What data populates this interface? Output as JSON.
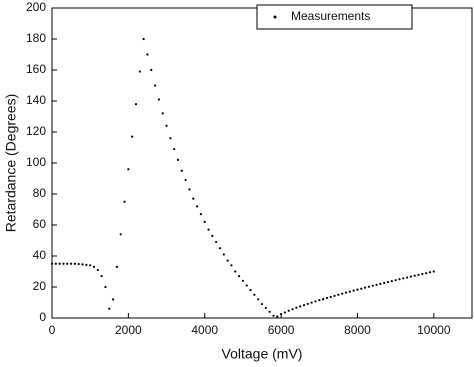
{
  "chart_data": {
    "type": "scatter",
    "x_label": "Voltage (mV)",
    "y_label": "Retardance (Degrees)",
    "xlim": [
      0,
      11000
    ],
    "xticks": [
      0,
      2000,
      4000,
      6000,
      8000,
      10000
    ],
    "ylim": [
      0,
      200
    ],
    "yticks": [
      0,
      20,
      40,
      60,
      80,
      100,
      120,
      140,
      160,
      180,
      200
    ],
    "legend": "top-right",
    "series": [
      {
        "name": "Measurements",
        "color": "#000000",
        "x": [
          0,
          100,
          200,
          300,
          400,
          500,
          600,
          700,
          800,
          900,
          1000,
          1100,
          1200,
          1300,
          1400,
          1500,
          1600,
          1700,
          1800,
          1900,
          2000,
          2100,
          2200,
          2300,
          2400,
          2500,
          2600,
          2700,
          2800,
          2900,
          3000,
          3100,
          3200,
          3300,
          3400,
          3500,
          3600,
          3700,
          3800,
          3900,
          4000,
          4100,
          4200,
          4300,
          4400,
          4500,
          4600,
          4700,
          4800,
          4900,
          5000,
          5100,
          5200,
          5300,
          5400,
          5500,
          5600,
          5700,
          5800,
          5900,
          6000,
          6100,
          6200,
          6300,
          6400,
          6500,
          6600,
          6700,
          6800,
          6900,
          7000,
          7100,
          7200,
          7300,
          7400,
          7500,
          7600,
          7700,
          7800,
          7900,
          8000,
          8100,
          8200,
          8300,
          8400,
          8500,
          8600,
          8700,
          8800,
          8900,
          9000,
          9100,
          9200,
          9300,
          9400,
          9500,
          9600,
          9700,
          9800,
          9900,
          10000
        ],
        "values": [
          35,
          35,
          35,
          35,
          35,
          35,
          35,
          34.8,
          34.6,
          34.3,
          34,
          33,
          31,
          27,
          20,
          6,
          12,
          33,
          54,
          75,
          96,
          117,
          138,
          159,
          180,
          170,
          160,
          150,
          141,
          132,
          124,
          116,
          109,
          102,
          95,
          89,
          83,
          77,
          72,
          67,
          62,
          57,
          53,
          49,
          45,
          41,
          37,
          34,
          30,
          27,
          24,
          21,
          18,
          15,
          12,
          9,
          6.5,
          4,
          1.5,
          1,
          2.5,
          3.6,
          4.7,
          5.7,
          6.6,
          7.5,
          8.3,
          9.1,
          9.9,
          10.7,
          11.5,
          12.2,
          12.9,
          13.6,
          14.3,
          15,
          15.7,
          16.4,
          17,
          17.7,
          18.3,
          18.9,
          19.6,
          20.2,
          20.8,
          21.4,
          22,
          22.6,
          23.2,
          23.8,
          24.4,
          25,
          25.6,
          26.1,
          26.7,
          27.3,
          27.8,
          28.4,
          28.9,
          29.5,
          30
        ]
      }
    ]
  }
}
